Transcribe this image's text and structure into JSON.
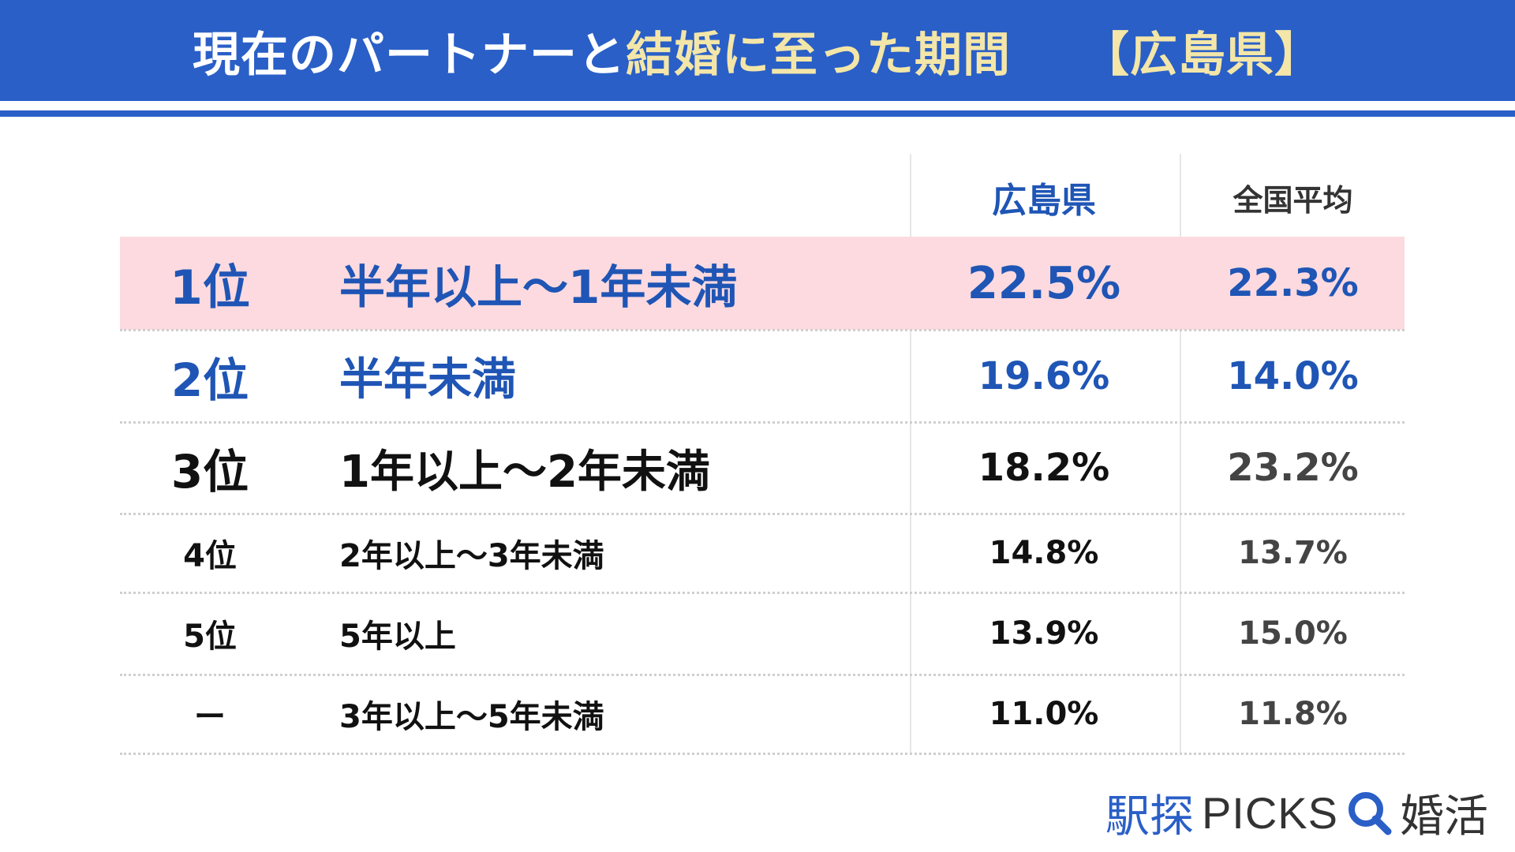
{
  "title": {
    "part1": "現在のパートナーと",
    "part2": "結婚に至った期間",
    "part3": "【広島県】"
  },
  "columns": {
    "prefecture": "広島県",
    "national": "全国平均"
  },
  "colors": {
    "brand_blue": "#2a5fc7",
    "dark_blue": "#1f55b5",
    "highlight_row": "#fcdadf",
    "title_highlight": "#f3e6a8"
  },
  "logo": {
    "text1": "駅探",
    "text2": "PICKS",
    "text3": "婚活",
    "icon": "search-magnifier-icon"
  },
  "chart_data": {
    "type": "table",
    "title": "現在のパートナーと結婚に至った期間 【広島県】",
    "columns": [
      "",
      "",
      "広島県",
      "全国平均"
    ],
    "rows": [
      {
        "rank": "1位",
        "label": "半年以上〜1年未満",
        "prefecture": "22.5%",
        "national": "22.3%"
      },
      {
        "rank": "2位",
        "label": "半年未満",
        "prefecture": "19.6%",
        "national": "14.0%"
      },
      {
        "rank": "3位",
        "label": "1年以上〜2年未満",
        "prefecture": "18.2%",
        "national": "23.2%"
      },
      {
        "rank": "4位",
        "label": "2年以上〜3年未満",
        "prefecture": "14.8%",
        "national": "13.7%"
      },
      {
        "rank": "5位",
        "label": "5年以上",
        "prefecture": "13.9%",
        "national": "15.0%"
      },
      {
        "rank": "ー",
        "label": "3年以上〜5年未満",
        "prefecture": "11.0%",
        "national": "11.8%"
      }
    ]
  }
}
